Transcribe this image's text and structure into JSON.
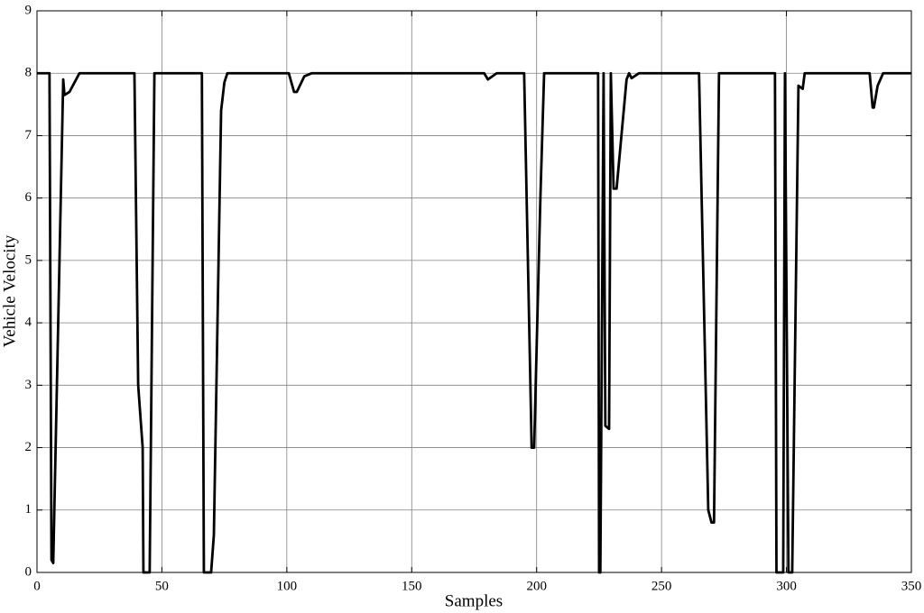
{
  "chart_data": {
    "type": "line",
    "x_label": "Samples",
    "y_label": "Vehicle Velocity",
    "color": "#000000",
    "grid": true,
    "xlim": [
      0,
      350
    ],
    "ylim": [
      0,
      9
    ],
    "xticks": [
      0,
      50,
      100,
      150,
      200,
      250,
      300,
      350
    ],
    "yticks": [
      0,
      1,
      2,
      3,
      4,
      5,
      6,
      7,
      8,
      9
    ],
    "x": [
      0,
      5,
      5.8,
      6.5,
      10.5,
      11,
      13,
      17,
      39,
      40.5,
      42.3,
      42.6,
      45.1,
      47,
      66,
      66.8,
      69.7,
      70.8,
      73.7,
      75,
      76.2,
      100.8,
      102.9,
      104,
      107,
      110,
      179,
      180.5,
      184,
      195,
      198,
      199,
      201.5,
      203,
      224.6,
      225,
      225.5,
      226.8,
      227.5,
      229,
      229.7,
      230.8,
      232,
      236,
      237,
      238,
      241,
      265,
      268.7,
      270,
      271,
      273,
      295.4,
      296,
      298.7,
      299.4,
      300.8,
      302.3,
      304.8,
      306.5,
      307.3,
      333.3,
      334.5,
      335,
      336.5,
      338.7,
      350
    ],
    "values": [
      8,
      8,
      0.2,
      0.15,
      7.9,
      7.65,
      7.7,
      8,
      8,
      3,
      2,
      0,
      0,
      8,
      8,
      0,
      0,
      0.6,
      7.4,
      7.85,
      8,
      8,
      7.7,
      7.7,
      7.95,
      8,
      8,
      7.9,
      8,
      8,
      2,
      2,
      6,
      8,
      8,
      0,
      0,
      8,
      2.35,
      2.3,
      8,
      6.15,
      6.15,
      7.9,
      8,
      7.92,
      8,
      8,
      1,
      0.8,
      0.8,
      8,
      8,
      0,
      0,
      8,
      0,
      0,
      7.8,
      7.75,
      8,
      8,
      7.45,
      7.45,
      7.8,
      8,
      8
    ]
  }
}
